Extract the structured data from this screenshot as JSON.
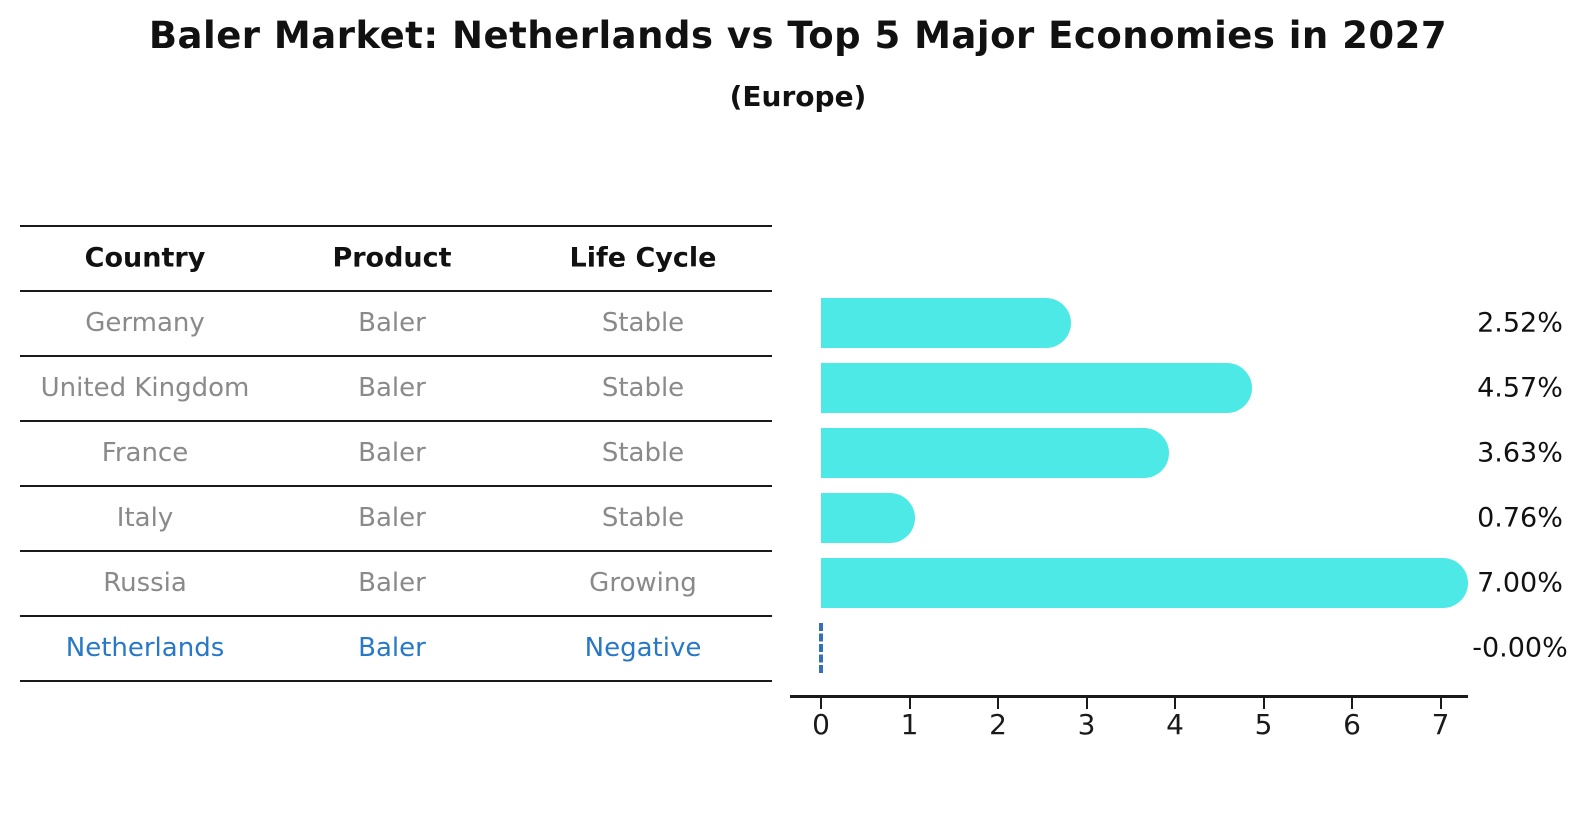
{
  "title": "Baler Market: Netherlands vs Top 5 Major Economies in 2027",
  "subtitle": "(Europe)",
  "table": {
    "headers": [
      "Country",
      "Product",
      "Life Cycle"
    ],
    "rows": [
      {
        "country": "Germany",
        "product": "Baler",
        "life_cycle": "Stable",
        "highlight": false
      },
      {
        "country": "United Kingdom",
        "product": "Baler",
        "life_cycle": "Stable",
        "highlight": false
      },
      {
        "country": "France",
        "product": "Baler",
        "life_cycle": "Stable",
        "highlight": false
      },
      {
        "country": "Italy",
        "product": "Baler",
        "life_cycle": "Stable",
        "highlight": false
      },
      {
        "country": "Russia",
        "product": "Baler",
        "life_cycle": "Growing",
        "highlight": false
      },
      {
        "country": "Netherlands",
        "product": "Baler",
        "life_cycle": "Negative",
        "highlight": true
      }
    ]
  },
  "chart_data": {
    "type": "bar",
    "orientation": "horizontal",
    "title": "Baler Market: Netherlands vs Top 5 Major Economies in 2027",
    "subtitle": "(Europe)",
    "categories": [
      "Germany",
      "United Kingdom",
      "France",
      "Italy",
      "Russia",
      "Netherlands"
    ],
    "values": [
      2.52,
      4.57,
      3.63,
      0.76,
      7.0,
      -0.0
    ],
    "value_labels": [
      "2.52%",
      "4.57%",
      "3.63%",
      "0.76%",
      "7.00%",
      "-0.00%"
    ],
    "x_ticks": [
      0,
      1,
      2,
      3,
      4,
      5,
      6,
      7
    ],
    "xlim": [
      0,
      7.5
    ],
    "grid": false,
    "legend": "none",
    "bar_color": "#4DE9E6",
    "highlight_color": "#2878C8",
    "zero_bar_style": "dashed-outline"
  },
  "colors": {
    "bar": "#4DE9E6",
    "highlight_text": "#2878C8",
    "zero_dash": "#3372B4",
    "muted_text": "#8A8A8A",
    "heading_text": "#111111",
    "axis": "#1A1A1A"
  }
}
